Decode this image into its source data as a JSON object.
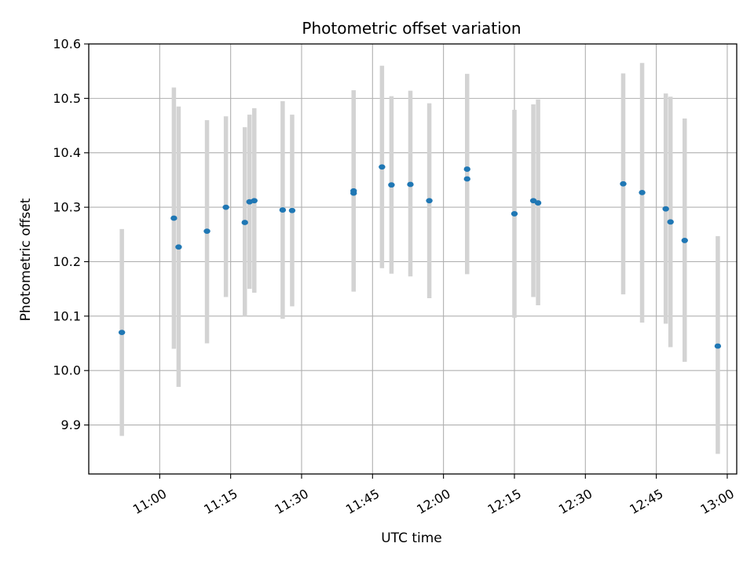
{
  "chart_data": {
    "type": "scatter",
    "title": "Photometric offset variation",
    "xlabel": "UTC time",
    "ylabel": "Photometric offset",
    "xlim": [
      "10:45",
      "13:02"
    ],
    "ylim": [
      9.81,
      10.6
    ],
    "x_ticks": [
      "11:00",
      "11:15",
      "11:30",
      "11:45",
      "12:00",
      "12:15",
      "12:30",
      "12:45",
      "13:00"
    ],
    "y_ticks": [
      "9.9",
      "10.0",
      "10.1",
      "10.2",
      "10.3",
      "10.4",
      "10.5",
      "10.6"
    ],
    "grid": true,
    "colors": {
      "points": "#1f77b4",
      "error_bars": "#d3d3d3",
      "grid": "#b0b0b0"
    },
    "series": [
      {
        "points": [
          {
            "x": "10:52",
            "y": 10.07,
            "ylow": 9.88,
            "yhigh": 10.26
          },
          {
            "x": "11:03",
            "y": 10.28,
            "ylow": 10.04,
            "yhigh": 10.52
          },
          {
            "x": "11:04",
            "y": 10.227,
            "ylow": 9.97,
            "yhigh": 10.485
          },
          {
            "x": "11:10",
            "y": 10.256,
            "ylow": 10.05,
            "yhigh": 10.46
          },
          {
            "x": "11:14",
            "y": 10.3,
            "ylow": 10.135,
            "yhigh": 10.467
          },
          {
            "x": "11:18",
            "y": 10.272,
            "ylow": 10.1,
            "yhigh": 10.447
          },
          {
            "x": "11:19",
            "y": 10.31,
            "ylow": 10.15,
            "yhigh": 10.47
          },
          {
            "x": "11:20",
            "y": 10.312,
            "ylow": 10.143,
            "yhigh": 10.482
          },
          {
            "x": "11:26",
            "y": 10.295,
            "ylow": 10.095,
            "yhigh": 10.495
          },
          {
            "x": "11:28",
            "y": 10.294,
            "ylow": 10.118,
            "yhigh": 10.47
          },
          {
            "x": "11:41",
            "y": 10.326,
            "ylow": 10.153,
            "yhigh": 10.5
          },
          {
            "x": "11:41",
            "y": 10.33,
            "ylow": 10.145,
            "yhigh": 10.515
          },
          {
            "x": "11:47",
            "y": 10.374,
            "ylow": 10.188,
            "yhigh": 10.56
          },
          {
            "x": "11:49",
            "y": 10.341,
            "ylow": 10.178,
            "yhigh": 10.504
          },
          {
            "x": "11:53",
            "y": 10.342,
            "ylow": 10.173,
            "yhigh": 10.514
          },
          {
            "x": "11:57",
            "y": 10.312,
            "ylow": 10.133,
            "yhigh": 10.491
          },
          {
            "x": "12:05",
            "y": 10.37,
            "ylow": 10.195,
            "yhigh": 10.545
          },
          {
            "x": "12:05",
            "y": 10.352,
            "ylow": 10.177,
            "yhigh": 10.531
          },
          {
            "x": "12:15",
            "y": 10.288,
            "ylow": 10.097,
            "yhigh": 10.479
          },
          {
            "x": "12:19",
            "y": 10.312,
            "ylow": 10.135,
            "yhigh": 10.489
          },
          {
            "x": "12:20",
            "y": 10.308,
            "ylow": 10.12,
            "yhigh": 10.498
          },
          {
            "x": "12:38",
            "y": 10.343,
            "ylow": 10.14,
            "yhigh": 10.546
          },
          {
            "x": "12:42",
            "y": 10.327,
            "ylow": 10.088,
            "yhigh": 10.565
          },
          {
            "x": "12:47",
            "y": 10.297,
            "ylow": 10.086,
            "yhigh": 10.509
          },
          {
            "x": "12:48",
            "y": 10.273,
            "ylow": 10.043,
            "yhigh": 10.503
          },
          {
            "x": "12:51",
            "y": 10.239,
            "ylow": 10.016,
            "yhigh": 10.463
          },
          {
            "x": "12:58",
            "y": 10.045,
            "ylow": 9.847,
            "yhigh": 10.247
          }
        ]
      }
    ]
  }
}
